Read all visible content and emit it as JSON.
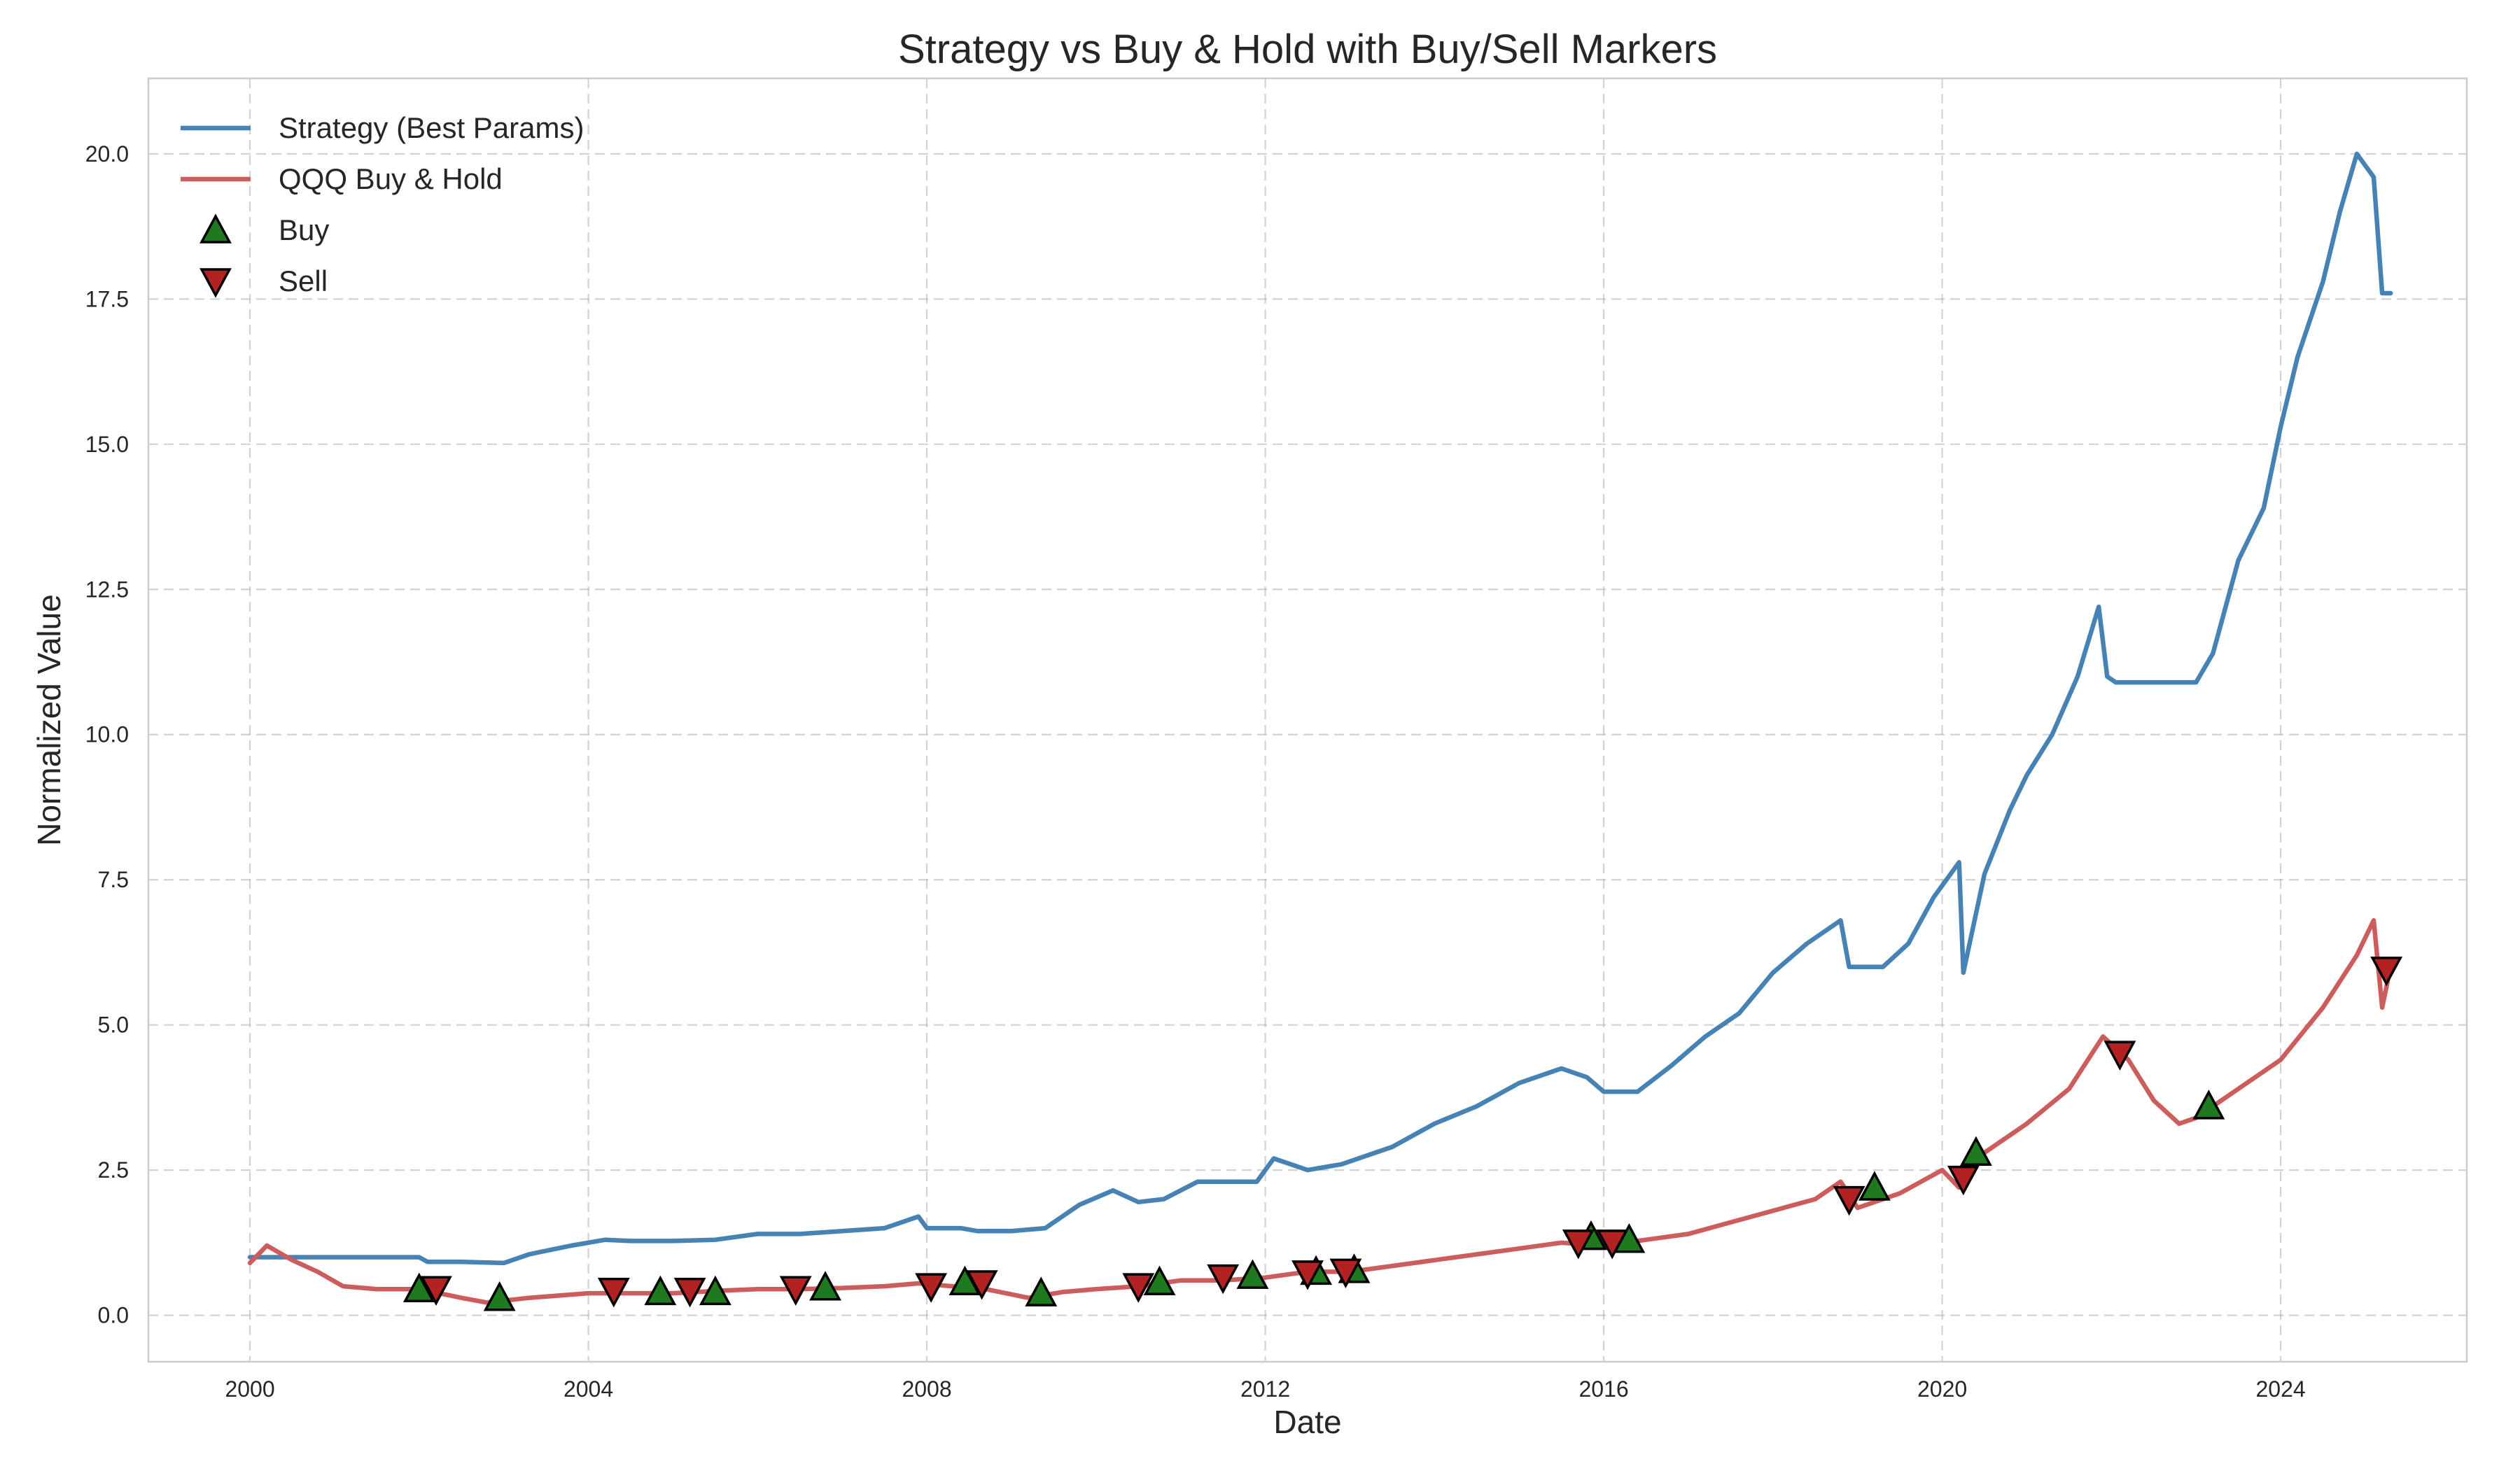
{
  "chart_data": {
    "type": "line",
    "title": "Strategy vs Buy & Hold with Buy/Sell Markers",
    "xlabel": "Date",
    "ylabel": "Normalized Value",
    "x_ticks": [
      2000,
      2004,
      2008,
      2012,
      2016,
      2020,
      2024
    ],
    "x_tick_labels": [
      "2000",
      "2004",
      "2008",
      "2012",
      "2016",
      "2020",
      "2024"
    ],
    "y_ticks": [
      0,
      2.5,
      5,
      7.5,
      10,
      12.5,
      15,
      17.5,
      20
    ],
    "y_tick_labels": [
      "0.0",
      "2.5",
      "5.0",
      "7.5",
      "10.0",
      "12.5",
      "15.0",
      "17.5",
      "20.0"
    ],
    "xlim": [
      1998.8,
      2026.2
    ],
    "ylim": [
      -0.8,
      21.3
    ],
    "grid": true,
    "legend_position": "top-left",
    "colors": {
      "strategy": "#4682b4",
      "buy_hold": "#cd5c5c",
      "buy_marker": "#1f7a1f",
      "sell_marker": "#b22222",
      "marker_edge": "#000000",
      "frame": "#cccccc"
    },
    "series": [
      {
        "name": "Strategy (Best Params)",
        "x": [
          2000.0,
          2000.2,
          2000.5,
          2001.0,
          2001.5,
          2002.0,
          2002.1,
          2002.5,
          2003.0,
          2003.3,
          2003.8,
          2004.2,
          2004.5,
          2005.0,
          2005.5,
          2006.0,
          2006.5,
          2007.0,
          2007.5,
          2007.9,
          2008.0,
          2008.4,
          2008.6,
          2009.0,
          2009.4,
          2009.8,
          2010.2,
          2010.5,
          2010.8,
          2011.2,
          2011.5,
          2011.9,
          2012.1,
          2012.5,
          2012.9,
          2013.5,
          2014.0,
          2014.5,
          2015.0,
          2015.5,
          2015.8,
          2016.0,
          2016.4,
          2016.8,
          2017.2,
          2017.6,
          2018.0,
          2018.4,
          2018.8,
          2018.9,
          2019.3,
          2019.6,
          2019.9,
          2020.2,
          2020.25,
          2020.5,
          2020.8,
          2021.0,
          2021.3,
          2021.6,
          2021.85,
          2021.95,
          2022.05,
          2022.1,
          2022.5,
          2023.0,
          2023.2,
          2023.5,
          2023.8,
          2024.0,
          2024.2,
          2024.5,
          2024.7,
          2024.9,
          2025.1,
          2025.2,
          2025.3
        ],
        "y": [
          1.0,
          1.0,
          1.0,
          1.0,
          1.0,
          1.0,
          0.92,
          0.92,
          0.9,
          1.05,
          1.2,
          1.3,
          1.28,
          1.28,
          1.3,
          1.4,
          1.4,
          1.45,
          1.5,
          1.7,
          1.5,
          1.5,
          1.45,
          1.45,
          1.5,
          1.9,
          2.15,
          1.95,
          2.0,
          2.3,
          2.3,
          2.3,
          2.7,
          2.5,
          2.6,
          2.9,
          3.3,
          3.6,
          4.0,
          4.25,
          4.1,
          3.85,
          3.85,
          4.3,
          4.8,
          5.2,
          5.9,
          6.4,
          6.8,
          6.0,
          6.0,
          6.4,
          7.2,
          7.8,
          5.9,
          7.6,
          8.7,
          9.3,
          10.0,
          11.0,
          12.2,
          11.0,
          10.9,
          10.9,
          10.9,
          10.9,
          11.4,
          13.0,
          13.9,
          15.3,
          16.5,
          17.8,
          19.0,
          20.0,
          19.6,
          17.6,
          17.6
        ]
      },
      {
        "name": "QQQ Buy & Hold",
        "x": [
          2000.0,
          2000.2,
          2000.5,
          2000.8,
          2001.1,
          2001.5,
          2002.0,
          2002.5,
          2002.8,
          2003.3,
          2004.0,
          2004.5,
          2005.0,
          2005.5,
          2006.0,
          2006.5,
          2007.0,
          2007.5,
          2007.9,
          2008.3,
          2008.7,
          2009.2,
          2009.6,
          2010.0,
          2010.5,
          2011.0,
          2011.5,
          2012.0,
          2012.5,
          2013.0,
          2013.5,
          2014.0,
          2014.5,
          2015.0,
          2015.5,
          2016.0,
          2016.5,
          2017.0,
          2017.5,
          2018.0,
          2018.5,
          2018.8,
          2019.0,
          2019.5,
          2020.0,
          2020.2,
          2020.5,
          2021.0,
          2021.5,
          2021.9,
          2022.2,
          2022.5,
          2022.8,
          2023.0,
          2023.5,
          2024.0,
          2024.5,
          2024.9,
          2025.1,
          2025.2,
          2025.3
        ],
        "y": [
          0.9,
          1.2,
          0.95,
          0.75,
          0.5,
          0.45,
          0.45,
          0.3,
          0.22,
          0.3,
          0.38,
          0.38,
          0.38,
          0.42,
          0.45,
          0.45,
          0.47,
          0.5,
          0.55,
          0.5,
          0.45,
          0.3,
          0.4,
          0.45,
          0.5,
          0.6,
          0.6,
          0.65,
          0.75,
          0.75,
          0.85,
          0.95,
          1.05,
          1.15,
          1.25,
          1.2,
          1.3,
          1.4,
          1.6,
          1.8,
          2.0,
          2.3,
          1.85,
          2.1,
          2.5,
          2.2,
          2.8,
          3.3,
          3.9,
          4.8,
          4.4,
          3.7,
          3.3,
          3.4,
          3.9,
          4.4,
          5.3,
          6.2,
          6.8,
          5.3,
          6.0
        ]
      }
    ],
    "buy_signals": {
      "name": "Buy",
      "x": [
        2002.0,
        2002.95,
        2004.85,
        2005.5,
        2006.8,
        2008.45,
        2009.35,
        2010.75,
        2011.85,
        2012.6,
        2013.05,
        2015.85,
        2016.3,
        2019.2,
        2020.4,
        2023.15
      ],
      "y": [
        0.45,
        0.3,
        0.4,
        0.4,
        0.48,
        0.57,
        0.38,
        0.57,
        0.68,
        0.75,
        0.78,
        1.35,
        1.3,
        2.2,
        2.8,
        3.6
      ]
    },
    "sell_signals": {
      "name": "Sell",
      "x": [
        2002.2,
        2004.3,
        2005.2,
        2006.45,
        2008.05,
        2008.65,
        2010.5,
        2011.5,
        2012.5,
        2012.95,
        2015.7,
        2016.1,
        2018.9,
        2020.25,
        2022.1,
        2025.25
      ],
      "y": [
        0.45,
        0.42,
        0.42,
        0.45,
        0.5,
        0.55,
        0.5,
        0.65,
        0.72,
        0.75,
        1.25,
        1.25,
        2.0,
        2.35,
        4.5,
        5.95
      ]
    }
  }
}
